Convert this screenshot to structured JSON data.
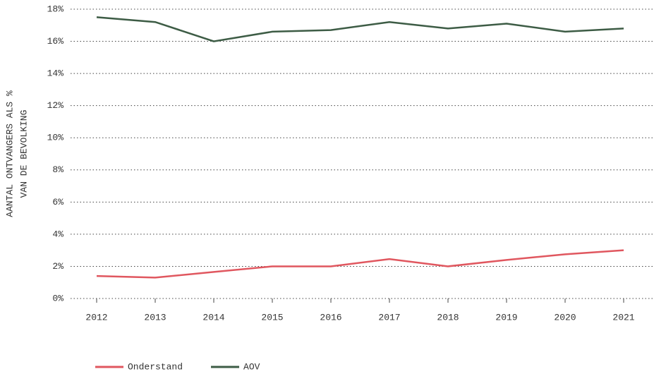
{
  "chart_data": {
    "type": "line",
    "ylabel": [
      "AANTAL ONTVANGERS ALS %",
      "VAN DE BEVOLKING"
    ],
    "categories": [
      "2012",
      "2013",
      "2014",
      "2015",
      "2016",
      "2017",
      "2018",
      "2019",
      "2020",
      "2021"
    ],
    "series": [
      {
        "name": "Onderstand",
        "color": "#e0575f",
        "values": [
          1.4,
          1.3,
          1.65,
          2.0,
          2.0,
          2.45,
          2.0,
          2.4,
          2.75,
          3.0
        ]
      },
      {
        "name": "AOV",
        "color": "#3d5c45",
        "values": [
          17.5,
          17.2,
          16.0,
          16.6,
          16.7,
          17.2,
          16.8,
          17.1,
          16.6,
          16.8
        ]
      }
    ],
    "ylim": [
      0,
      18
    ],
    "yticks": [
      {
        "value": 0,
        "label": "0%"
      },
      {
        "value": 2,
        "label": "2%"
      },
      {
        "value": 4,
        "label": "4%"
      },
      {
        "value": 6,
        "label": "6%"
      },
      {
        "value": 8,
        "label": "8%"
      },
      {
        "value": 10,
        "label": "10%"
      },
      {
        "value": 12,
        "label": "12%"
      },
      {
        "value": 14,
        "label": "14%"
      },
      {
        "value": 16,
        "label": "16%"
      },
      {
        "value": 18,
        "label": "18%"
      }
    ],
    "grid": true,
    "legend": "bottom-left"
  }
}
